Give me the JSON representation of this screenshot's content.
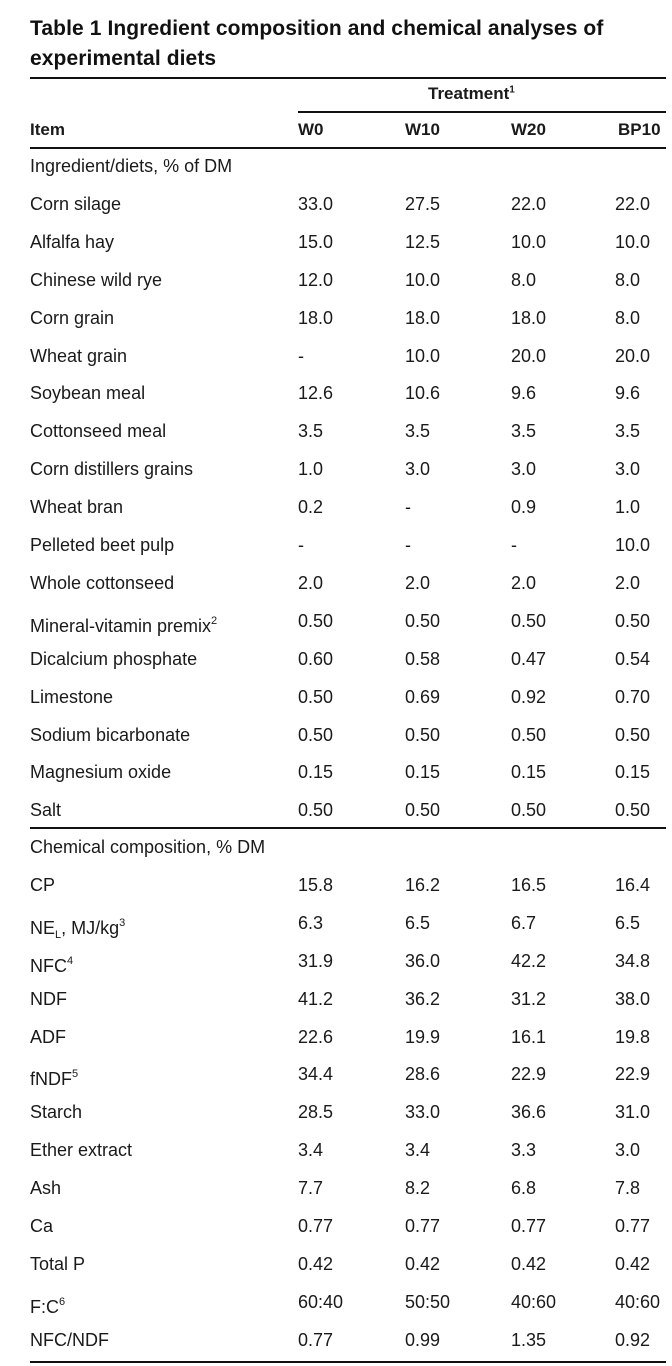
{
  "title": "Table 1 Ingredient composition and chemical analyses of experimental diets",
  "treatment_header": {
    "label": "Treatment",
    "sup": "1"
  },
  "columns": {
    "item": "Item",
    "w0": "W0",
    "w10": "W10",
    "w20": "W20",
    "bp10": "BP10"
  },
  "sections": [
    {
      "heading": "Ingredient/diets, % of DM",
      "rows": [
        {
          "label": "Corn silage",
          "values": [
            "33.0",
            "27.5",
            "22.0",
            "22.0"
          ]
        },
        {
          "label": "Alfalfa hay",
          "values": [
            "15.0",
            "12.5",
            "10.0",
            "10.0"
          ]
        },
        {
          "label": "Chinese wild rye",
          "values": [
            "12.0",
            "10.0",
            "8.0",
            "8.0"
          ]
        },
        {
          "label": "Corn grain",
          "values": [
            "18.0",
            "18.0",
            "18.0",
            "8.0"
          ]
        },
        {
          "label": "Wheat grain",
          "values": [
            "-",
            "10.0",
            "20.0",
            "20.0"
          ]
        },
        {
          "label": "Soybean meal",
          "values": [
            "12.6",
            "10.6",
            "9.6",
            "9.6"
          ]
        },
        {
          "label": "Cottonseed meal",
          "values": [
            "3.5",
            "3.5",
            "3.5",
            "3.5"
          ]
        },
        {
          "label": "Corn distillers grains",
          "values": [
            "1.0",
            "3.0",
            "3.0",
            "3.0"
          ]
        },
        {
          "label": "Wheat bran",
          "values": [
            "0.2",
            "-",
            "0.9",
            "1.0"
          ]
        },
        {
          "label": "Pelleted beet pulp",
          "values": [
            "-",
            "-",
            "-",
            "10.0"
          ]
        },
        {
          "label": "Whole cottonseed",
          "values": [
            "2.0",
            "2.0",
            "2.0",
            "2.0"
          ]
        },
        {
          "label": "Mineral-vitamin premix",
          "sup": "2",
          "values": [
            "0.50",
            "0.50",
            "0.50",
            "0.50"
          ]
        },
        {
          "label": "Dicalcium phosphate",
          "values": [
            "0.60",
            "0.58",
            "0.47",
            "0.54"
          ]
        },
        {
          "label": "Limestone",
          "values": [
            "0.50",
            "0.69",
            "0.92",
            "0.70"
          ]
        },
        {
          "label": "Sodium bicarbonate",
          "values": [
            "0.50",
            "0.50",
            "0.50",
            "0.50"
          ]
        },
        {
          "label": "Magnesium oxide",
          "values": [
            "0.15",
            "0.15",
            "0.15",
            "0.15"
          ]
        },
        {
          "label": "Salt",
          "values": [
            "0.50",
            "0.50",
            "0.50",
            "0.50"
          ]
        }
      ]
    },
    {
      "heading": "Chemical composition, % DM",
      "rows": [
        {
          "label": "CP",
          "values": [
            "15.8",
            "16.2",
            "16.5",
            "16.4"
          ]
        },
        {
          "label": "NE",
          "sub": "L",
          "rest": ", MJ/kg",
          "sup": "3",
          "values": [
            "6.3",
            "6.5",
            "6.7",
            "6.5"
          ]
        },
        {
          "label": "NFC",
          "sup": "4",
          "values": [
            "31.9",
            "36.0",
            "42.2",
            "34.8"
          ]
        },
        {
          "label": "NDF",
          "values": [
            "41.2",
            "36.2",
            "31.2",
            "38.0"
          ]
        },
        {
          "label": "ADF",
          "values": [
            "22.6",
            "19.9",
            "16.1",
            "19.8"
          ]
        },
        {
          "label": "fNDF",
          "sup": "5",
          "values": [
            "34.4",
            "28.6",
            "22.9",
            "22.9"
          ]
        },
        {
          "label": "Starch",
          "values": [
            "28.5",
            "33.0",
            "36.6",
            "31.0"
          ]
        },
        {
          "label": "Ether extract",
          "values": [
            "3.4",
            "3.4",
            "3.3",
            "3.0"
          ]
        },
        {
          "label": "Ash",
          "values": [
            "7.7",
            "8.2",
            "6.8",
            "7.8"
          ]
        },
        {
          "label": "Ca",
          "values": [
            "0.77",
            "0.77",
            "0.77",
            "0.77"
          ]
        },
        {
          "label": "Total P",
          "values": [
            "0.42",
            "0.42",
            "0.42",
            "0.42"
          ]
        },
        {
          "label": "F:C",
          "sup": "6",
          "values": [
            "60:40",
            "50:50",
            "40:60",
            "40:60"
          ]
        },
        {
          "label": "NFC/NDF",
          "values": [
            "0.77",
            "0.99",
            "1.35",
            "0.92"
          ]
        }
      ]
    }
  ]
}
